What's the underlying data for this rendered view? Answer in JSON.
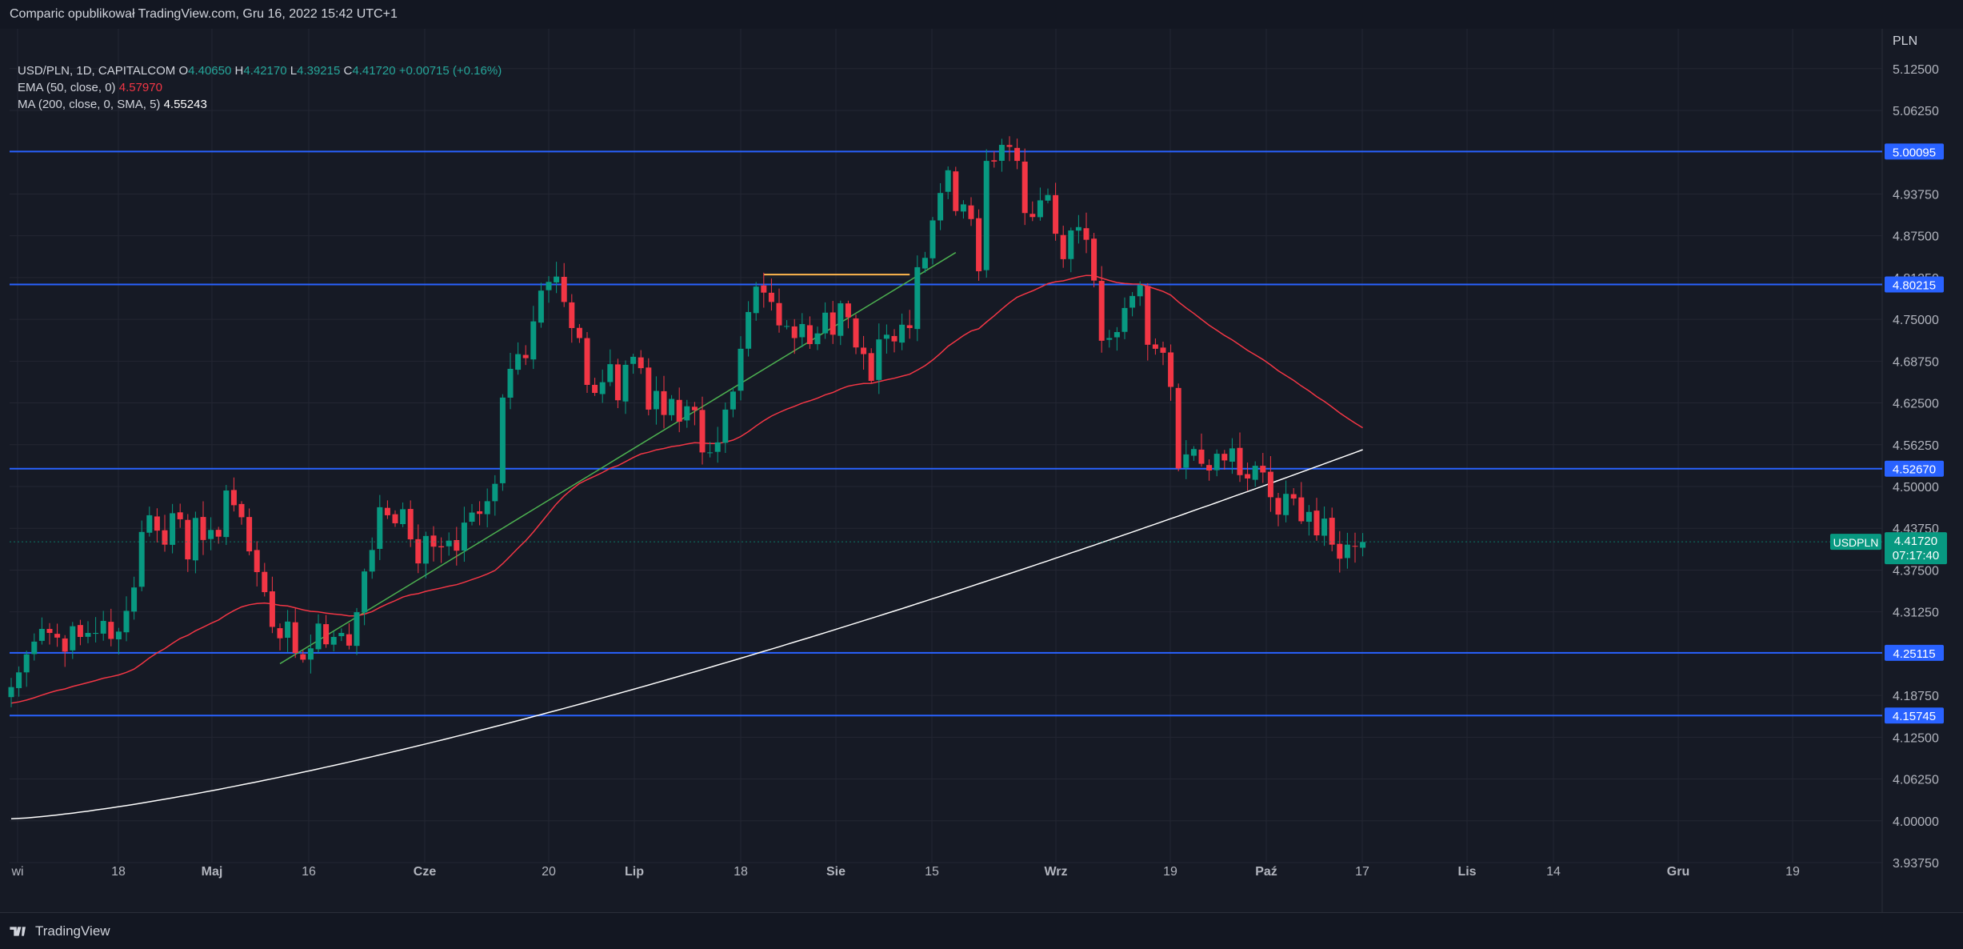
{
  "header": {
    "publisher_line": "Comparic opublikował TradingView.com, Gru 16, 2022 15:42 UTC+1"
  },
  "legend": {
    "symbol": "USD/PLN, 1D, CAPITALCOM",
    "o_label": "O",
    "o_value": "4.40650",
    "h_label": "H",
    "h_value": "4.42170",
    "l_label": "L",
    "l_value": "4.39215",
    "c_label": "C",
    "c_value": "4.41720",
    "change": "+0.00715 (+0.16%)",
    "ema_label": "EMA (50, close, 0)",
    "ema_value": "4.57970",
    "ma_label": "MA (200, close, 0, SMA, 5)",
    "ma_value": "4.55243"
  },
  "footer": {
    "brand": "TradingView"
  },
  "colors": {
    "background": "#161a25",
    "grid": "#232632",
    "up": "#089981",
    "down": "#f23645",
    "ema": "#f23645",
    "ma": "#ffffff",
    "hline": "#2962ff",
    "trendline": "#4caf50",
    "yellow_line": "#ffb74d"
  },
  "chart_data": {
    "type": "candlestick",
    "title": "USD/PLN, 1D, CAPITALCOM",
    "y_axis_unit": "PLN",
    "ylim": [
      3.9,
      5.17
    ],
    "y_ticks": [
      "5.12500",
      "5.06250",
      "4.93750",
      "4.87500",
      "4.81250",
      "4.75000",
      "4.68750",
      "4.62500",
      "4.56250",
      "4.50000",
      "4.43750",
      "4.37500",
      "4.31250",
      "4.18750",
      "4.12500",
      "4.06250",
      "4.00000",
      "3.93750"
    ],
    "x_ticks": [
      "wi",
      "18",
      "Maj",
      "16",
      "Cze",
      "20",
      "Lip",
      "18",
      "Sie",
      "15",
      "Wrz",
      "19",
      "Paź",
      "17",
      "Lis",
      "14",
      "Gru",
      "19"
    ],
    "last_price": {
      "symbol_tag": "USDPLN",
      "price": "4.41720",
      "countdown": "07:17:40"
    },
    "horizontal_levels": [
      "5.00095",
      "4.80215",
      "4.52670",
      "4.25115",
      "4.15745"
    ],
    "closes": [
      4.2,
      4.222,
      4.249,
      4.268,
      4.287,
      4.281,
      4.274,
      4.253,
      4.291,
      4.275,
      4.281,
      4.281,
      4.299,
      4.272,
      4.283,
      4.314,
      4.349,
      4.432,
      4.457,
      4.434,
      4.413,
      4.46,
      4.451,
      4.391,
      4.453,
      4.42,
      4.435,
      4.425,
      4.494,
      4.472,
      4.454,
      4.403,
      4.372,
      4.342,
      4.29,
      4.273,
      4.298,
      4.251,
      4.241,
      4.258,
      4.295,
      4.264,
      4.275,
      4.281,
      4.262,
      4.312,
      4.373,
      4.405,
      4.469,
      4.457,
      4.445,
      4.466,
      4.421,
      4.385,
      4.426,
      4.41,
      4.409,
      4.419,
      4.404,
      4.446,
      4.461,
      4.459,
      4.478,
      4.504,
      4.633,
      4.676,
      4.698,
      4.692,
      4.747,
      4.793,
      4.806,
      4.814,
      4.776,
      4.737,
      4.722,
      4.652,
      4.64,
      4.656,
      4.683,
      4.629,
      4.682,
      4.694,
      4.677,
      4.615,
      4.643,
      4.607,
      4.631,
      4.597,
      4.62,
      4.614,
      4.551,
      4.551,
      4.566,
      4.615,
      4.642,
      4.706,
      4.761,
      4.799,
      4.79,
      4.776,
      4.741,
      4.74,
      4.722,
      4.743,
      4.713,
      4.729,
      4.76,
      4.727,
      4.774,
      4.753,
      4.708,
      4.698,
      4.658,
      4.72,
      4.727,
      4.717,
      4.742,
      4.737,
      4.828,
      4.842,
      4.898,
      4.939,
      4.973,
      4.912,
      4.922,
      4.9,
      4.822,
      4.987,
      4.986,
      5.011,
      5.008,
      4.987,
      4.909,
      4.903,
      4.928,
      4.936,
      4.878,
      4.84,
      4.883,
      4.888,
      4.869,
      4.808,
      4.718,
      4.722,
      4.731,
      4.767,
      4.785,
      4.801,
      4.712,
      4.706,
      4.7,
      4.649,
      4.527,
      4.548,
      4.556,
      4.534,
      4.524,
      4.549,
      4.539,
      4.557,
      4.517,
      4.512,
      4.531,
      4.521,
      4.484,
      4.458,
      4.489,
      4.482,
      4.448,
      4.462,
      4.427,
      4.452,
      4.413,
      4.392,
      4.413,
      4.41,
      4.417
    ]
  }
}
